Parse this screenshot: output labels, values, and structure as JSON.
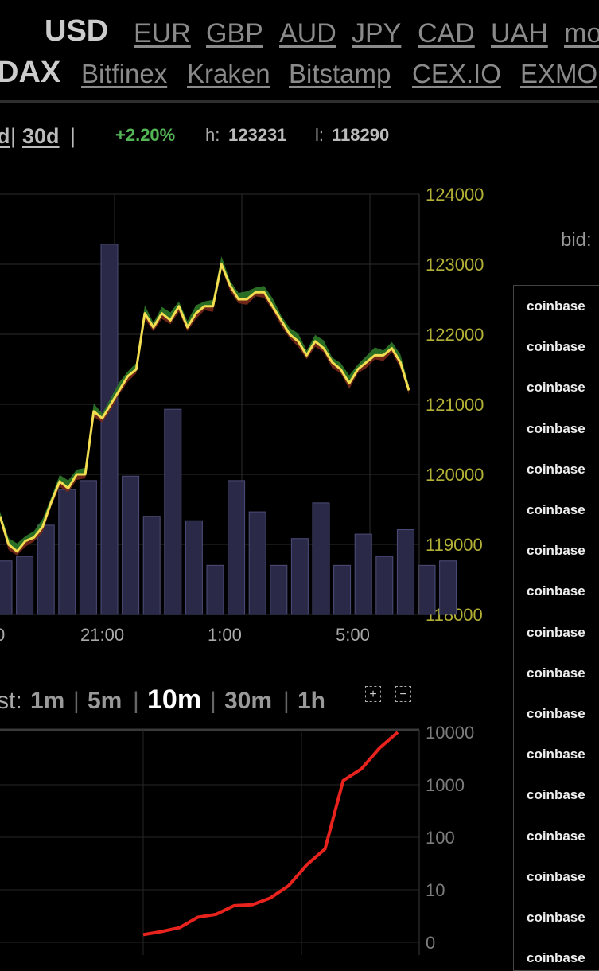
{
  "currencies": {
    "active": "USD",
    "links": [
      "EUR",
      "GBP",
      "AUD",
      "JPY",
      "CAD",
      "UAH",
      "mo"
    ]
  },
  "exchanges": {
    "active": "DAX",
    "links": [
      "Bitfinex",
      "Kraken",
      "Bitstamp",
      "CEX.IO",
      "EXMO"
    ]
  },
  "period_tabs": {
    "items": [
      "d",
      "30d"
    ],
    "separator": "|"
  },
  "stats": {
    "change": "+2.20%",
    "high_label": "h:",
    "high_value": "123231",
    "low_label": "l:",
    "low_value": "118290"
  },
  "colors": {
    "background": "#000000",
    "price_line": "#f2de50",
    "ask_area": "#2f7a2a",
    "bid_area": "#7a2a1c",
    "volume_bar": "#2a2a48",
    "axis_text": "#b3b036",
    "depth_line": "#e8221c",
    "positive": "#53b553"
  },
  "chart_data": [
    {
      "type": "line",
      "yticks": [
        "124000",
        "123000",
        "122000",
        "121000",
        "120000",
        "119000",
        "118000"
      ],
      "xticks": [
        "0",
        "21:00",
        "1:00",
        "5:00"
      ],
      "ylim": [
        118000,
        124000
      ],
      "series": [
        {
          "values": [
            119400,
            119000,
            118900,
            119050,
            119100,
            119250,
            119600,
            119900,
            119800,
            120000,
            120000,
            120900,
            120800,
            121000,
            121200,
            121400,
            121500,
            122300,
            122100,
            122300,
            122200,
            122400,
            122100,
            122300,
            122400,
            122400,
            123000,
            122700,
            122500,
            122500,
            122600,
            122600,
            122400,
            122200,
            122000,
            121900,
            121700,
            121900,
            121800,
            121600,
            121500,
            121300,
            121500,
            121600,
            121700,
            121700,
            121800,
            121600,
            121200
          ]
        }
      ],
      "volume": {
        "values": [
          600,
          650,
          1000,
          1400,
          1500,
          4150,
          1550,
          1100,
          2300,
          1050,
          550,
          1500,
          1150,
          550,
          850,
          1250,
          550,
          900,
          650,
          950,
          550,
          600
        ]
      }
    },
    {
      "type": "line",
      "yscale": "log",
      "yticks": [
        "10000",
        "1000",
        "100",
        "10",
        "0"
      ],
      "series": [
        {
          "values": [
            1.4,
            1.6,
            1.9,
            3,
            3.4,
            5,
            5.2,
            7,
            12,
            30,
            60,
            1200,
            2000,
            5000,
            10000
          ]
        }
      ]
    }
  ],
  "depth_controls": {
    "label": "st:",
    "options": [
      "1m",
      "5m",
      "10m",
      "30m",
      "1h"
    ],
    "active": "10m",
    "separator": "|",
    "zoom_in_icon": "+",
    "zoom_out_icon": "−"
  },
  "order_book": {
    "bid_label": "bid:",
    "rows": [
      "coinbase",
      "coinbase",
      "coinbase",
      "coinbase",
      "coinbase",
      "coinbase",
      "coinbase",
      "coinbase",
      "coinbase",
      "coinbase",
      "coinbase",
      "coinbase",
      "coinbase",
      "coinbase",
      "coinbase",
      "coinbase",
      "coinbase"
    ]
  }
}
